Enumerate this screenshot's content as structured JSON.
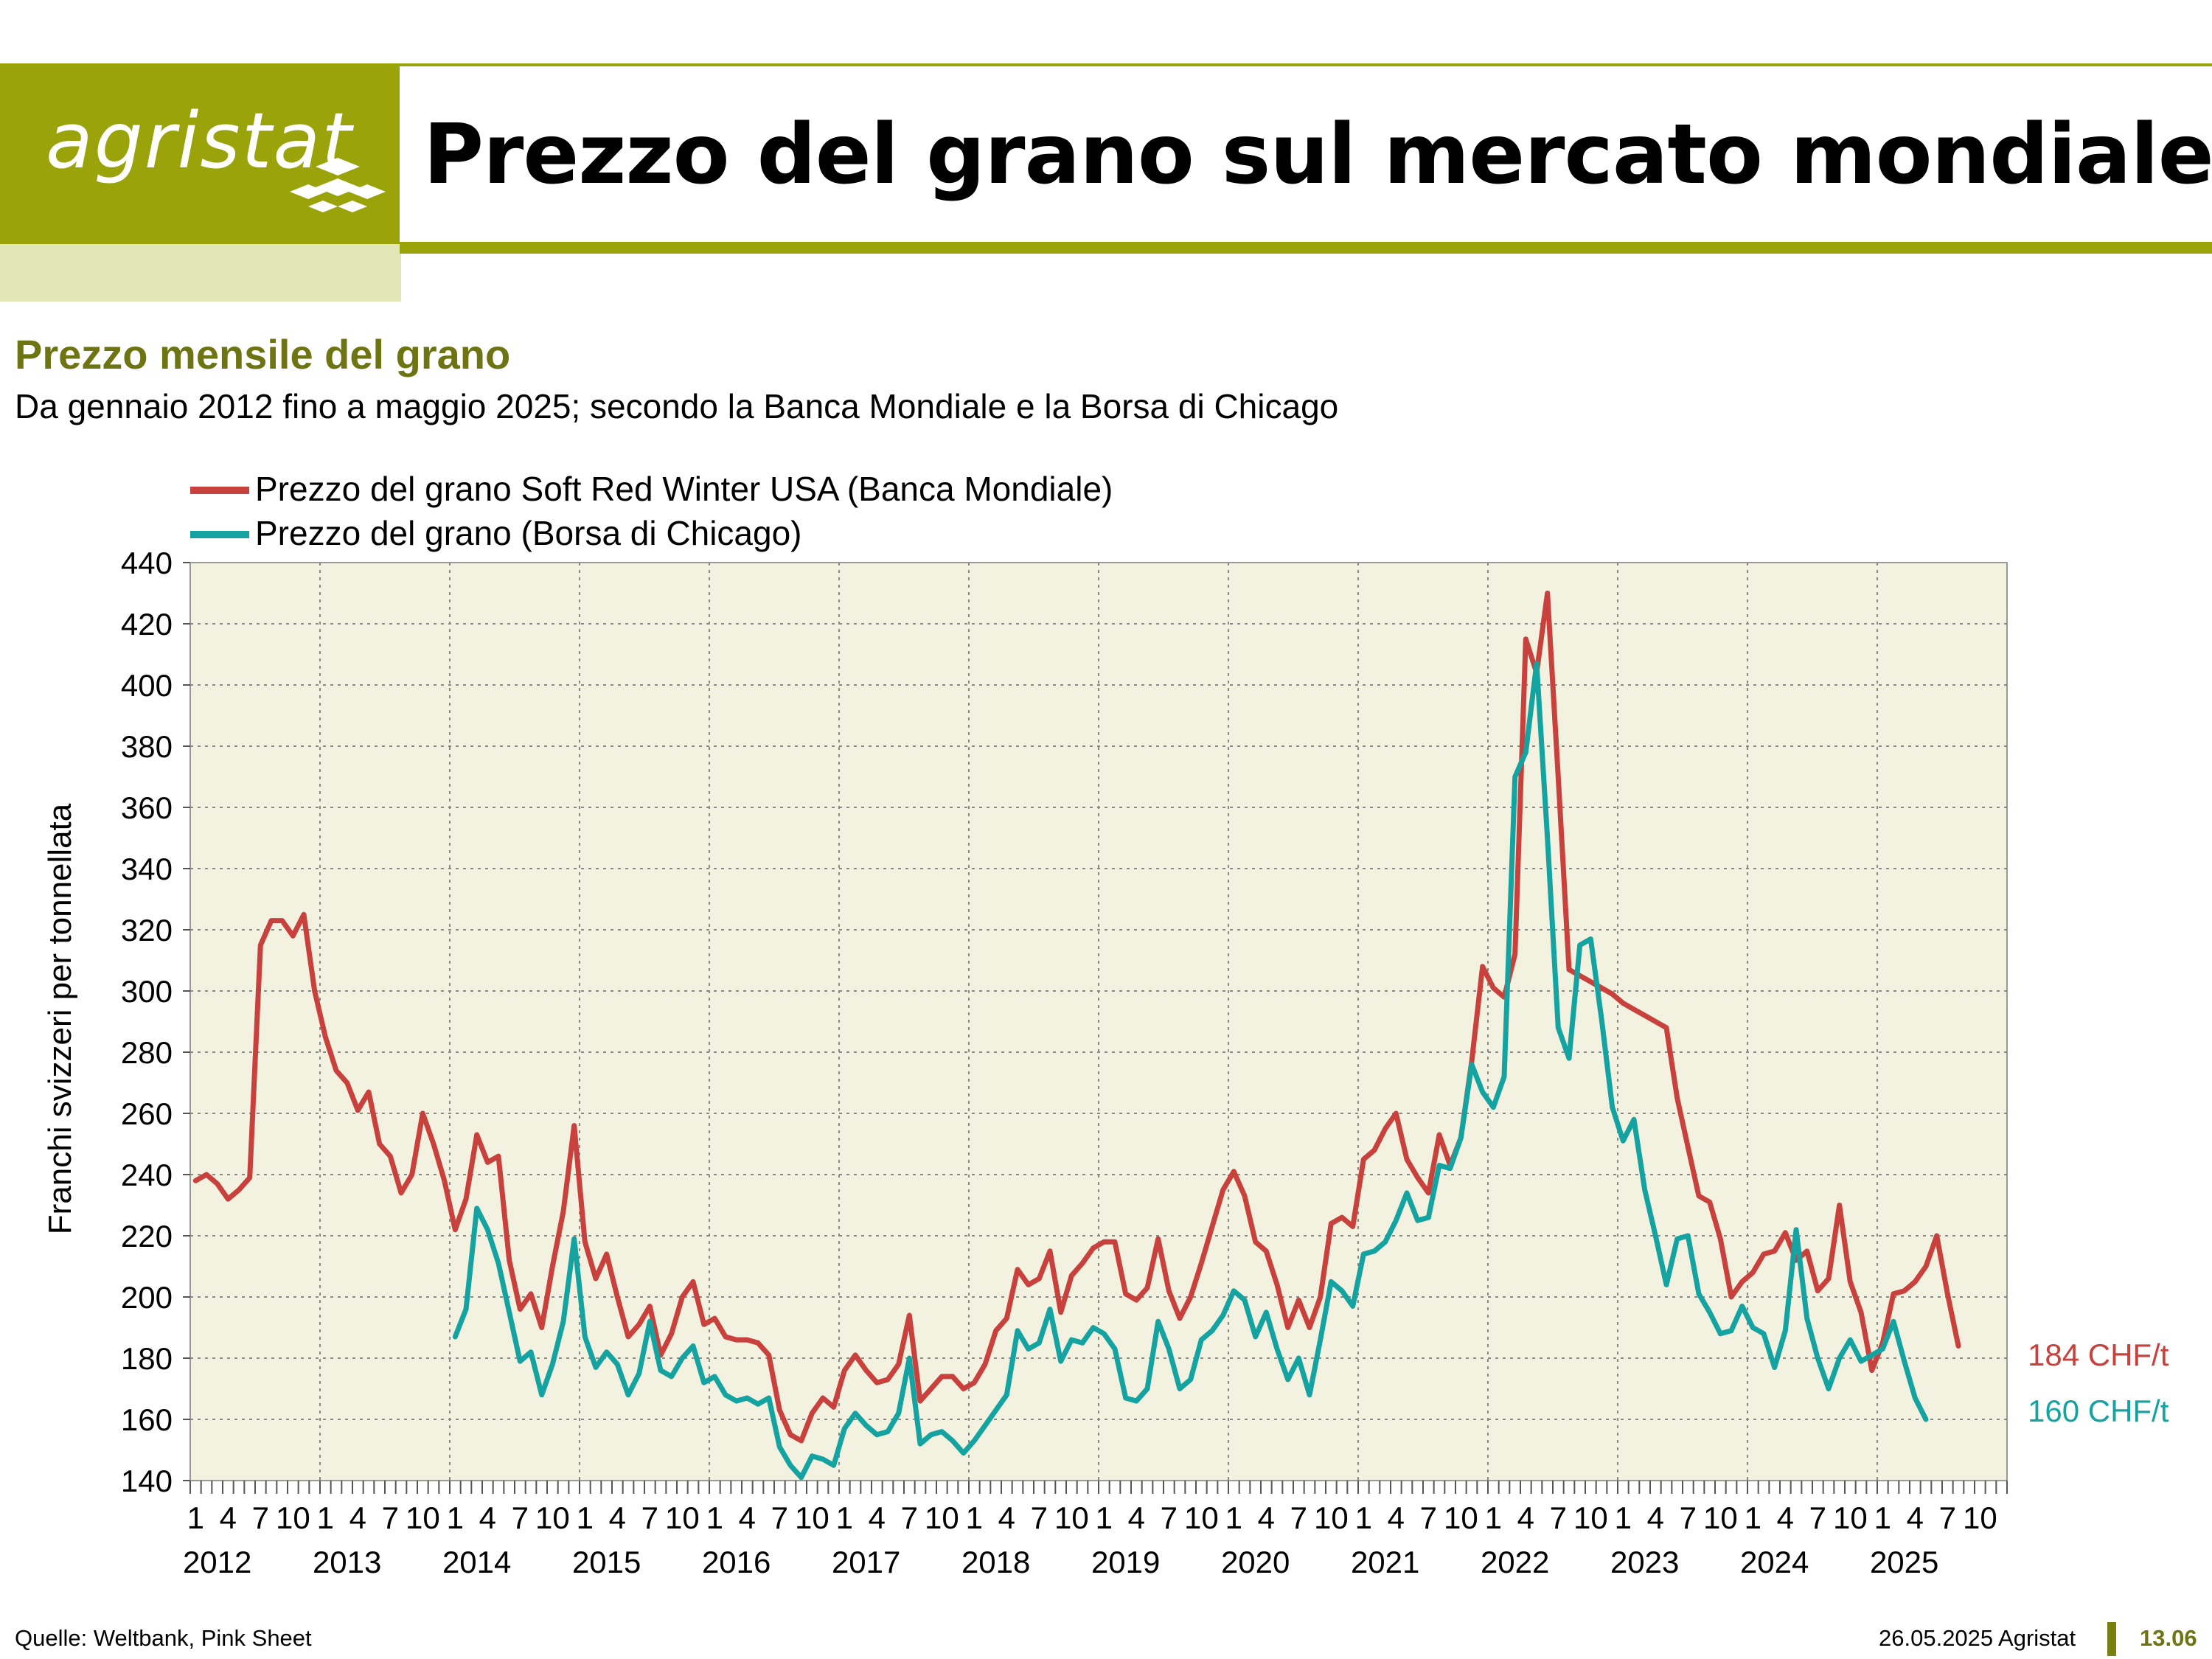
{
  "header": {
    "logo_text": "agristat",
    "title": "Prezzo del grano sul mercato mondiale",
    "brand_color": "#9aa40a"
  },
  "subtitle": "Prezzo mensile del grano",
  "description": "Da gennaio 2012 fino a maggio 2025; secondo la Banca Mondiale e la Borsa di Chicago",
  "footer": {
    "source": "Quelle: Weltbank, Pink Sheet",
    "date_brand": "26.05.2025 Agristat",
    "page_number": "13.06"
  },
  "end_labels": {
    "red": "184 CHF/t",
    "teal": "160 CHF/t"
  },
  "chart_data": {
    "type": "line",
    "title": "",
    "ylabel": "Franchi svizzeri per tonnellata",
    "xlabel": "",
    "ylim": [
      140,
      440
    ],
    "yticks": [
      140,
      160,
      180,
      200,
      220,
      240,
      260,
      280,
      300,
      320,
      340,
      360,
      380,
      400,
      420,
      440
    ],
    "x_month_ticks": [
      "1",
      "4",
      "7",
      "10"
    ],
    "years": [
      "2012",
      "2013",
      "2014",
      "2015",
      "2016",
      "2017",
      "2018",
      "2019",
      "2020",
      "2021",
      "2022",
      "2023",
      "2024",
      "2025"
    ],
    "grid": true,
    "legend_position": "top-left",
    "series": [
      {
        "name": "Prezzo del grano Soft Red Winter USA (Banca Mondiale)",
        "color": "#c8413c",
        "start": "2012-01",
        "values": [
          238,
          240,
          237,
          232,
          235,
          239,
          315,
          323,
          323,
          318,
          325,
          300,
          285,
          274,
          270,
          261,
          267,
          250,
          246,
          234,
          240,
          260,
          250,
          238,
          222,
          232,
          253,
          244,
          246,
          212,
          196,
          201,
          190,
          210,
          228,
          256,
          218,
          206,
          214,
          200,
          187,
          191,
          197,
          181,
          188,
          200,
          205,
          191,
          193,
          187,
          186,
          186,
          185,
          181,
          163,
          155,
          153,
          162,
          167,
          164,
          176,
          181,
          176,
          172,
          173,
          178,
          194,
          166,
          170,
          174,
          174,
          170,
          172,
          178,
          189,
          193,
          209,
          204,
          206,
          215,
          195,
          207,
          211,
          216,
          218,
          218,
          201,
          199,
          203,
          219,
          202,
          193,
          200,
          211,
          223,
          235,
          241,
          233,
          218,
          215,
          204,
          190,
          199,
          190,
          200,
          224,
          226,
          223,
          245,
          248,
          255,
          260,
          245,
          239,
          234,
          253,
          243,
          252,
          277,
          308,
          301,
          298,
          312,
          415,
          404,
          430,
          370,
          307,
          305,
          303,
          301,
          299,
          296,
          294,
          292,
          290,
          288,
          265,
          249,
          233,
          231,
          219,
          200,
          205,
          208,
          214,
          215,
          221,
          212,
          215,
          202,
          206,
          230,
          205,
          195,
          176,
          185,
          201,
          202,
          205,
          210,
          220,
          201,
          184
        ],
        "end_value": 184
      },
      {
        "name": "Prezzo del grano (Borsa di Chicago)",
        "color": "#14a3a0",
        "start": "2014-01",
        "values": [
          187,
          196,
          229,
          222,
          211,
          195,
          179,
          182,
          168,
          178,
          192,
          219,
          187,
          177,
          182,
          178,
          168,
          175,
          192,
          176,
          174,
          180,
          184,
          172,
          174,
          168,
          166,
          167,
          165,
          167,
          151,
          145,
          141,
          148,
          147,
          145,
          157,
          162,
          158,
          155,
          156,
          162,
          180,
          152,
          155,
          156,
          153,
          149,
          153,
          158,
          163,
          168,
          189,
          183,
          185,
          196,
          179,
          186,
          185,
          190,
          188,
          183,
          167,
          166,
          170,
          192,
          183,
          170,
          173,
          186,
          189,
          194,
          202,
          199,
          187,
          195,
          183,
          173,
          180,
          168,
          186,
          205,
          202,
          197,
          214,
          215,
          218,
          225,
          234,
          225,
          226,
          243,
          242,
          252,
          276,
          267,
          262,
          272,
          370,
          378,
          407,
          350,
          288,
          278,
          315,
          317,
          291,
          262,
          251,
          258,
          235,
          220,
          204,
          219,
          220,
          201,
          195,
          188,
          189,
          197,
          190,
          188,
          177,
          189,
          222,
          193,
          180,
          170,
          180,
          186,
          179,
          181,
          183,
          192,
          179,
          167,
          160
        ],
        "end_value": 160
      }
    ]
  }
}
